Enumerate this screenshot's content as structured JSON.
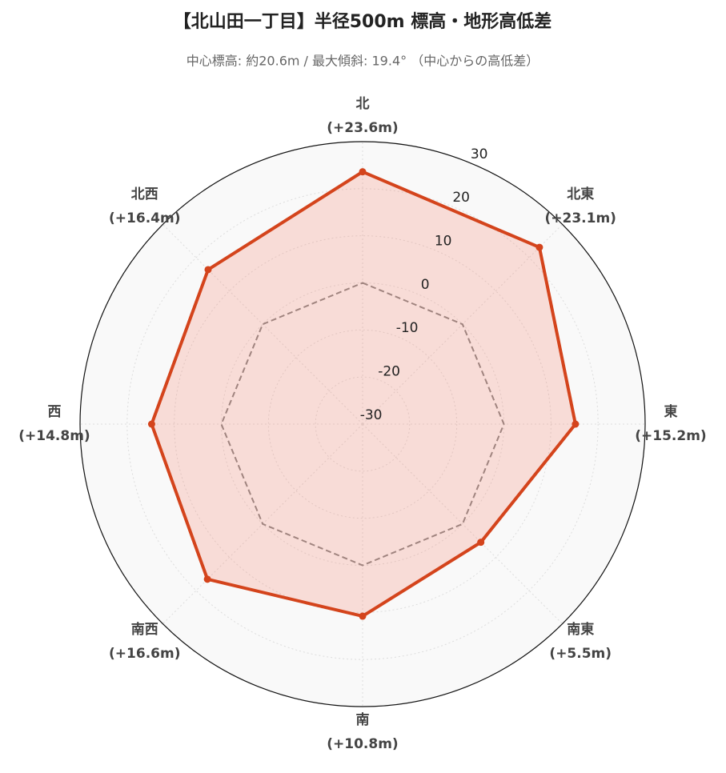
{
  "chart_data": {
    "type": "radar",
    "title": "【北山田一丁目】半径500m 標高・地形高低差",
    "subtitle": "中心標高: 約20.6m / 最大傾斜: 19.4° （中心からの高低差）",
    "categories": [
      "北",
      "北東",
      "東",
      "南東",
      "南",
      "南西",
      "西",
      "北西"
    ],
    "values": [
      23.6,
      23.1,
      15.2,
      5.5,
      10.8,
      16.6,
      14.8,
      16.4
    ],
    "value_labels": [
      "(+23.6m)",
      "(+23.1m)",
      "(+15.2m)",
      "(+5.5m)",
      "(+10.8m)",
      "(+16.6m)",
      "(+14.8m)",
      "(+16.4m)"
    ],
    "color": "#d4441c",
    "baseline": 0,
    "rlim": [
      -30,
      30
    ],
    "rticks": [
      -30,
      -20,
      -10,
      0,
      10,
      20,
      30
    ],
    "grid": true
  }
}
